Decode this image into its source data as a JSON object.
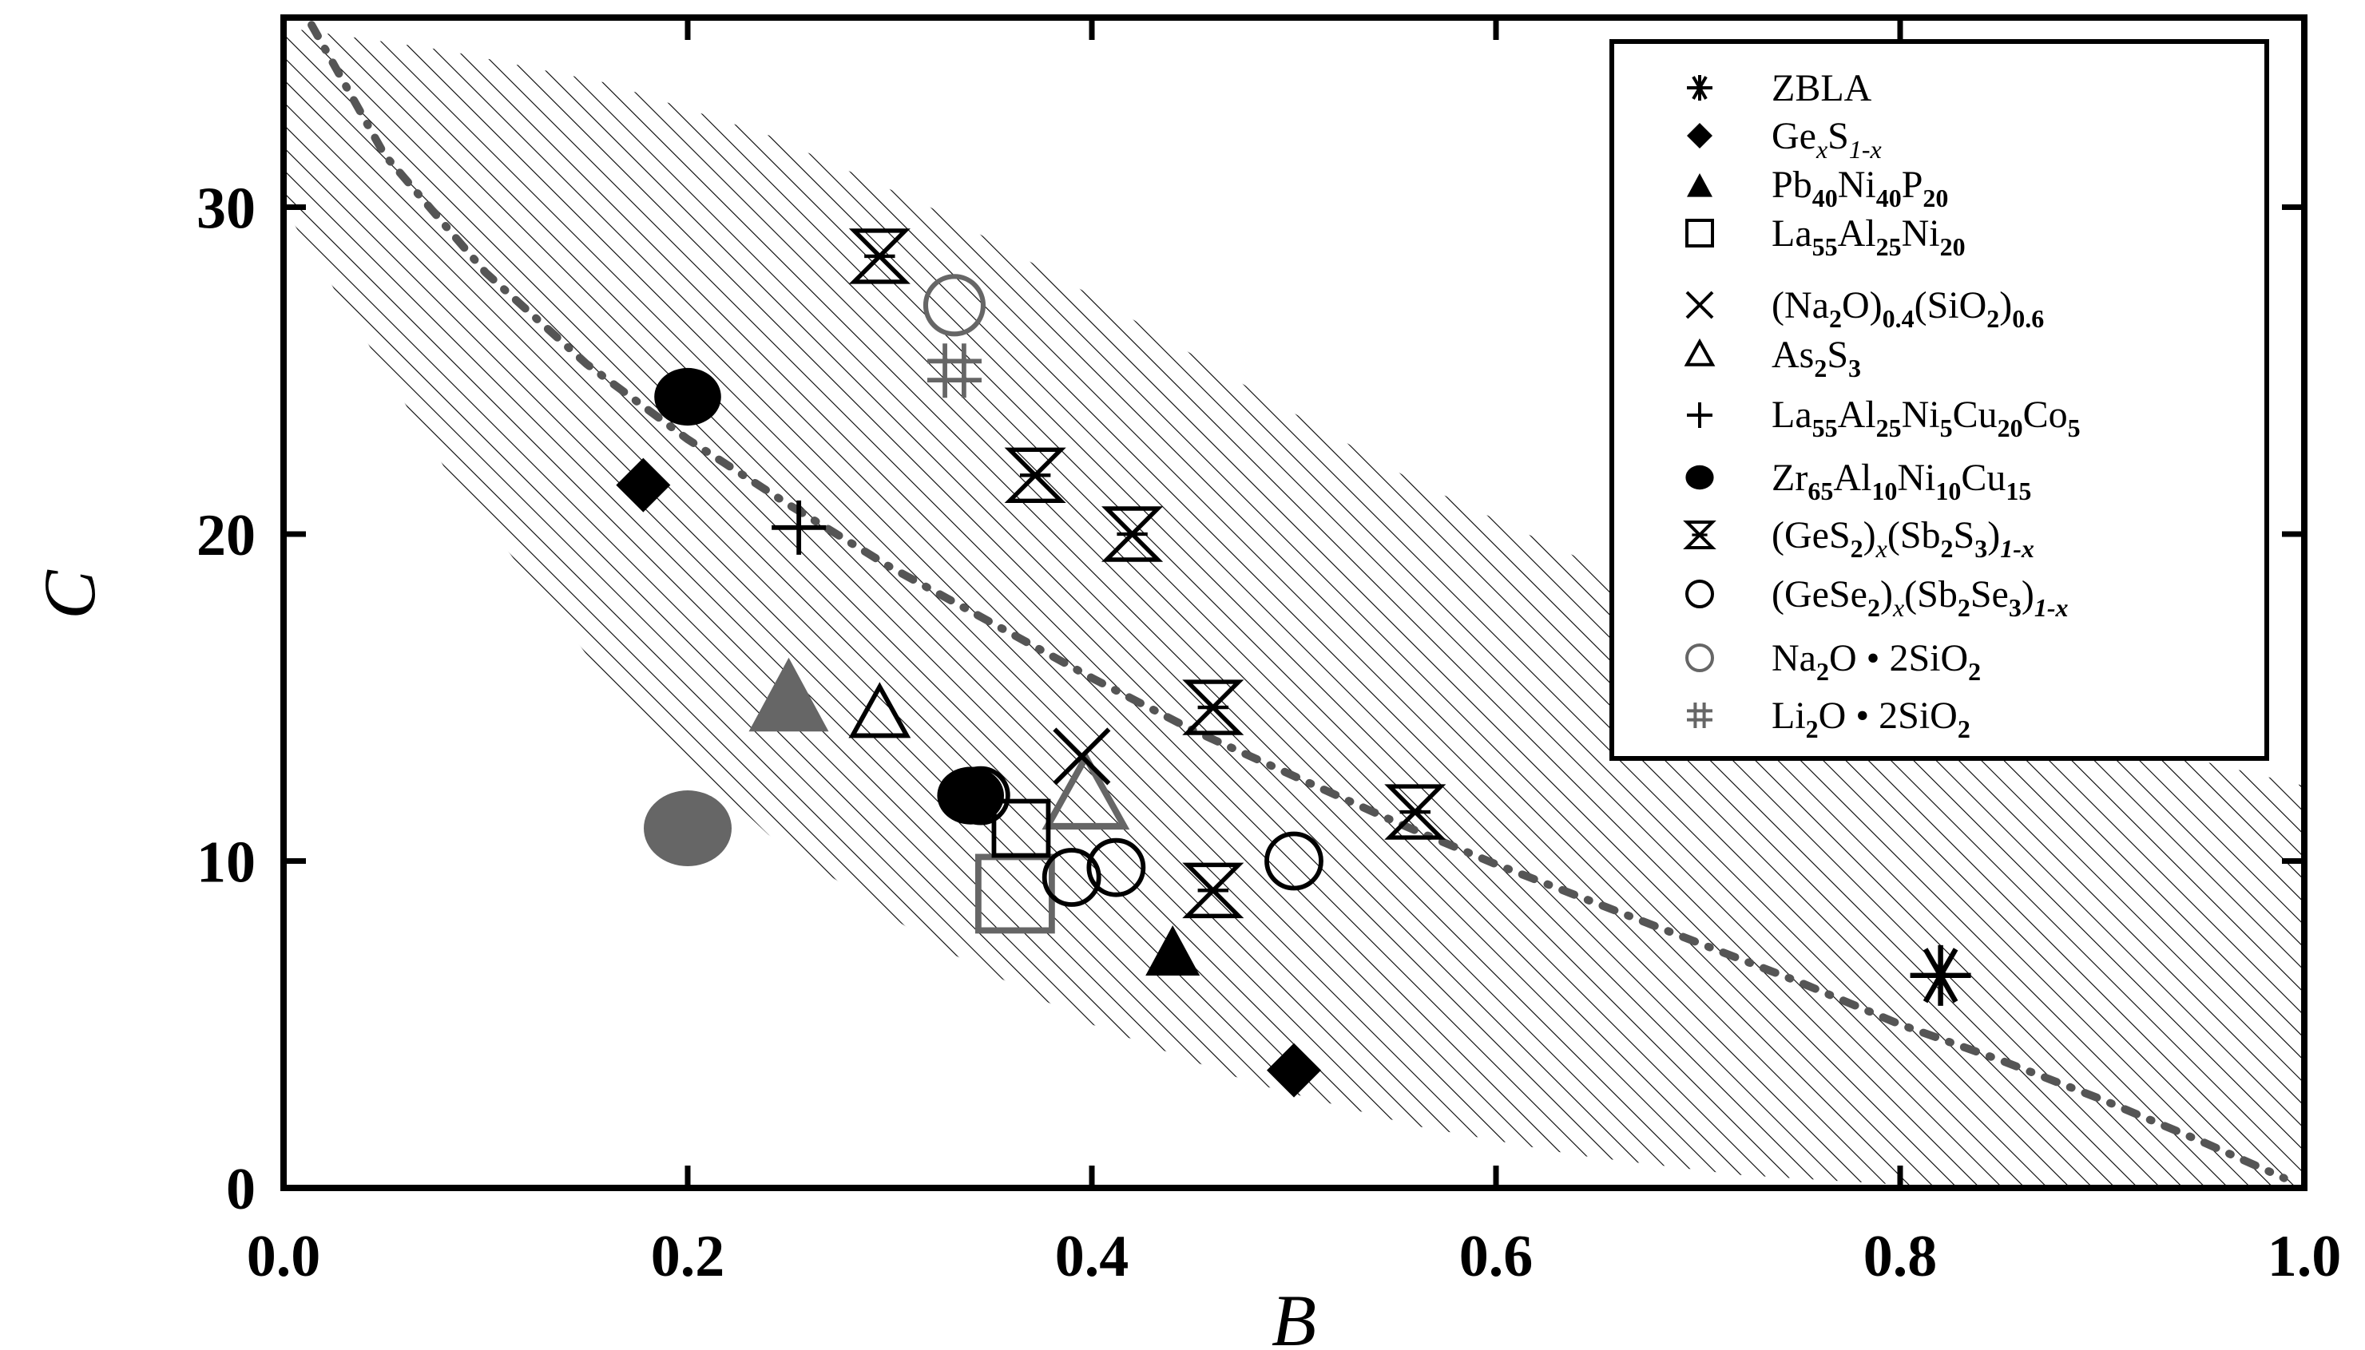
{
  "chart_data": {
    "type": "scatter",
    "xlabel": "B",
    "ylabel": "C",
    "xlim": [
      0.0,
      1.0
    ],
    "ylim": [
      0,
      35.8
    ],
    "x_ticks": [
      "0.0",
      "0.2",
      "0.4",
      "0.6",
      "0.8",
      "1.0"
    ],
    "y_ticks": [
      "0",
      "10",
      "20",
      "30"
    ],
    "legend_position": "top-right",
    "series": [
      {
        "name": "ZBLA",
        "marker": "asterisk",
        "color": "#000000",
        "points": [
          [
            0.82,
            6.5
          ]
        ]
      },
      {
        "name": "GexS1-x",
        "marker": "diamond",
        "color": "#000000",
        "points": [
          [
            0.178,
            21.5
          ],
          [
            0.5,
            3.6
          ]
        ]
      },
      {
        "name": "Pb40Ni40P20",
        "marker": "triangle-filled",
        "color": "#000000",
        "points": [
          [
            0.44,
            7.2
          ]
        ]
      },
      {
        "name": "La55Al25Ni20",
        "marker": "square-open",
        "color": "#000000",
        "points": [
          [
            0.365,
            11.0
          ]
        ]
      },
      {
        "name": "(Na2O)0.4(SiO2)0.6",
        "marker": "x",
        "color": "#000000",
        "points": [
          [
            0.395,
            13.2
          ]
        ]
      },
      {
        "name": "As2S3",
        "marker": "triangle-open",
        "color": "#000000",
        "points": [
          [
            0.295,
            14.5
          ]
        ]
      },
      {
        "name": "La55Al25Ni5Cu20Co5",
        "marker": "plus",
        "color": "#000000",
        "points": [
          [
            0.255,
            20.2
          ]
        ]
      },
      {
        "name": "Zr65Al10Ni10Cu15",
        "marker": "circle-filled",
        "color": "#000000",
        "points": [
          [
            0.2,
            24.2
          ],
          [
            0.34,
            12.0
          ]
        ]
      },
      {
        "name": "(GeS2)x(Sb2S3)1-x",
        "marker": "hourglass",
        "color": "#000000",
        "points": [
          [
            0.295,
            28.5
          ],
          [
            0.372,
            21.8
          ],
          [
            0.42,
            20.0
          ],
          [
            0.46,
            14.7
          ],
          [
            0.46,
            9.1
          ],
          [
            0.56,
            11.5
          ]
        ]
      },
      {
        "name": "(GeSe2)x(Sb2Se3)1-x",
        "marker": "circle-open",
        "color": "#000000",
        "points": [
          [
            0.345,
            12.0
          ],
          [
            0.39,
            9.5
          ],
          [
            0.412,
            9.8
          ],
          [
            0.5,
            10.0
          ]
        ]
      },
      {
        "name": "Na2O·2SiO2",
        "marker": "circle-open",
        "color": "#666666",
        "points": [
          [
            0.332,
            27.0
          ]
        ]
      },
      {
        "name": "Li2O·2SiO2",
        "marker": "hash",
        "color": "#666666",
        "points": [
          [
            0.332,
            25.0
          ]
        ]
      }
    ],
    "unlabeled_markers": [
      {
        "marker": "triangle-filled",
        "color": "#666666",
        "x": 0.25,
        "y": 15.0
      },
      {
        "marker": "circle-filled",
        "color": "#666666",
        "x": 0.2,
        "y": 11.0
      },
      {
        "marker": "square-open",
        "color": "#666666",
        "x": 0.362,
        "y": 9.0
      },
      {
        "marker": "triangle-open",
        "color": "#666666",
        "x": 0.397,
        "y": 12.0
      }
    ],
    "fit_curve": {
      "style": "dash-dot",
      "color": "#555555",
      "x": [
        0.01,
        0.05,
        0.1,
        0.15,
        0.2,
        0.25,
        0.3,
        0.35,
        0.4,
        0.45,
        0.5,
        0.55,
        0.6,
        0.65,
        0.7,
        0.75,
        0.8,
        0.85,
        0.9,
        0.95,
        0.99
      ],
      "y": [
        36.0,
        31.6,
        28.0,
        25.2,
        22.9,
        20.9,
        19.0,
        17.3,
        15.6,
        14.0,
        12.6,
        11.2,
        9.9,
        8.7,
        7.5,
        6.3,
        5.0,
        3.9,
        2.7,
        1.4,
        0.3
      ]
    },
    "shaded_band": {
      "pattern": "diagonal-hatch",
      "upper_x": [
        0.0,
        0.08,
        0.16,
        0.24,
        0.32,
        0.4,
        0.48,
        0.56,
        0.64,
        0.72,
        0.8,
        0.88,
        0.96,
        1.0
      ],
      "upper_y": [
        35.5,
        34.8,
        33.8,
        32.2,
        30.0,
        27.3,
        24.4,
        21.6,
        19.3,
        17.3,
        15.6,
        14.1,
        12.9,
        12.3
      ],
      "lower_x": [
        0.0,
        0.08,
        0.16,
        0.24,
        0.32,
        0.4,
        0.48,
        0.56,
        0.64,
        0.72,
        0.8,
        0.88,
        0.96,
        1.0
      ],
      "lower_y": [
        30.0,
        22.0,
        15.5,
        10.8,
        7.5,
        5.0,
        3.2,
        1.9,
        1.0,
        0.4,
        0.1,
        0.0,
        0.0,
        0.0
      ]
    }
  }
}
